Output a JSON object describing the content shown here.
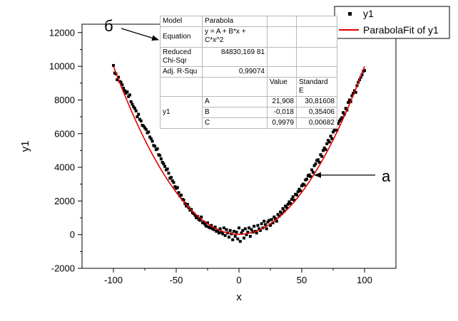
{
  "chart_data": {
    "type": "scatter",
    "xlabel": "x",
    "ylabel": "y1",
    "xlim": [
      -125,
      125
    ],
    "ylim": [
      -2000,
      12500
    ],
    "xticks": [
      -100,
      -50,
      0,
      50,
      100
    ],
    "yticks": [
      -2000,
      0,
      2000,
      4000,
      6000,
      8000,
      10000,
      12000
    ],
    "grid": false,
    "legend_position": "top-right",
    "series": [
      {
        "name": "y1",
        "kind": "scatter",
        "color": "#000000",
        "points": [
          [
            -100,
            10050
          ],
          [
            -99,
            9600
          ],
          [
            -98,
            9550
          ],
          [
            -97,
            9200
          ],
          [
            -96,
            9350
          ],
          [
            -95,
            9100
          ],
          [
            -94,
            9050
          ],
          [
            -93,
            8900
          ],
          [
            -92,
            8700
          ],
          [
            -91,
            8550
          ],
          [
            -90,
            8400
          ],
          [
            -89,
            8480
          ],
          [
            -88,
            8200
          ],
          [
            -87,
            8300
          ],
          [
            -86,
            7900
          ],
          [
            -85,
            7750
          ],
          [
            -84,
            7600
          ],
          [
            -83,
            7500
          ],
          [
            -82,
            7350
          ],
          [
            -81,
            7000
          ],
          [
            -80,
            7150
          ],
          [
            -79,
            6850
          ],
          [
            -78,
            6750
          ],
          [
            -77,
            6500
          ],
          [
            -76,
            6450
          ],
          [
            -75,
            6350
          ],
          [
            -74,
            6250
          ],
          [
            -73,
            6050
          ],
          [
            -72,
            6100
          ],
          [
            -71,
            5800
          ],
          [
            -70,
            5700
          ],
          [
            -69,
            5550
          ],
          [
            -68,
            5300
          ],
          [
            -67,
            5250
          ],
          [
            -66,
            5050
          ],
          [
            -65,
            5100
          ],
          [
            -64,
            4750
          ],
          [
            -63,
            4700
          ],
          [
            -62,
            4500
          ],
          [
            -61,
            4300
          ],
          [
            -60,
            4200
          ],
          [
            -59,
            4050
          ],
          [
            -58,
            3850
          ],
          [
            -57,
            3900
          ],
          [
            -56,
            3650
          ],
          [
            -55,
            3350
          ],
          [
            -54,
            3400
          ],
          [
            -53,
            3200
          ],
          [
            -52,
            3100
          ],
          [
            -51,
            2850
          ],
          [
            -50,
            2750
          ],
          [
            -49,
            2800
          ],
          [
            -48,
            2500
          ],
          [
            -47,
            2300
          ],
          [
            -46,
            2350
          ],
          [
            -45,
            2100
          ],
          [
            -44,
            2050
          ],
          [
            -43,
            1850
          ],
          [
            -42,
            1700
          ],
          [
            -41,
            1800
          ],
          [
            -40,
            1600
          ],
          [
            -39,
            1450
          ],
          [
            -38,
            1500
          ],
          [
            -37,
            1300
          ],
          [
            -36,
            1250
          ],
          [
            -35,
            1150
          ],
          [
            -34,
            1000
          ],
          [
            -33,
            1080
          ],
          [
            -32,
            900
          ],
          [
            -31,
            850
          ],
          [
            -30,
            1050
          ],
          [
            -29,
            700
          ],
          [
            -28,
            750
          ],
          [
            -27,
            600
          ],
          [
            -26,
            500
          ],
          [
            -25,
            700
          ],
          [
            -24,
            450
          ],
          [
            -23,
            400
          ],
          [
            -22,
            550
          ],
          [
            -21,
            350
          ],
          [
            -20,
            300
          ],
          [
            -19,
            450
          ],
          [
            -18,
            200
          ],
          [
            -17,
            250
          ],
          [
            -16,
            100
          ],
          [
            -15,
            350
          ],
          [
            -14,
            150
          ],
          [
            -13,
            50
          ],
          [
            -12,
            400
          ],
          [
            -11,
            -50
          ],
          [
            -10,
            300
          ],
          [
            -9,
            100
          ],
          [
            -8,
            -150
          ],
          [
            -7,
            250
          ],
          [
            -6,
            50
          ],
          [
            -5,
            -300
          ],
          [
            -4,
            200
          ],
          [
            -3,
            -100
          ],
          [
            -2,
            150
          ],
          [
            -1,
            -250
          ],
          [
            0,
            400
          ],
          [
            1,
            -400
          ],
          [
            2,
            100
          ],
          [
            3,
            250
          ],
          [
            4,
            -200
          ],
          [
            5,
            350
          ],
          [
            6,
            0
          ],
          [
            7,
            150
          ],
          [
            8,
            400
          ],
          [
            9,
            -100
          ],
          [
            10,
            300
          ],
          [
            11,
            150
          ],
          [
            12,
            500
          ],
          [
            13,
            200
          ],
          [
            14,
            100
          ],
          [
            15,
            550
          ],
          [
            16,
            350
          ],
          [
            17,
            250
          ],
          [
            18,
            650
          ],
          [
            19,
            400
          ],
          [
            20,
            800
          ],
          [
            21,
            600
          ],
          [
            22,
            350
          ],
          [
            23,
            750
          ],
          [
            24,
            850
          ],
          [
            25,
            550
          ],
          [
            26,
            900
          ],
          [
            27,
            700
          ],
          [
            28,
            1050
          ],
          [
            29,
            950
          ],
          [
            30,
            800
          ],
          [
            31,
            1200
          ],
          [
            32,
            1100
          ],
          [
            33,
            1350
          ],
          [
            34,
            1250
          ],
          [
            35,
            1550
          ],
          [
            36,
            1400
          ],
          [
            37,
            1700
          ],
          [
            38,
            1600
          ],
          [
            39,
            1800
          ],
          [
            40,
            1950
          ],
          [
            41,
            1850
          ],
          [
            42,
            2100
          ],
          [
            43,
            2250
          ],
          [
            44,
            2050
          ],
          [
            45,
            2400
          ],
          [
            46,
            2350
          ],
          [
            47,
            2550
          ],
          [
            48,
            2700
          ],
          [
            49,
            2600
          ],
          [
            50,
            2900
          ],
          [
            51,
            3000
          ],
          [
            52,
            2950
          ],
          [
            53,
            3250
          ],
          [
            54,
            3300
          ],
          [
            55,
            3500
          ],
          [
            56,
            3550
          ],
          [
            57,
            3450
          ],
          [
            58,
            3850
          ],
          [
            59,
            3700
          ],
          [
            60,
            4100
          ],
          [
            61,
            4200
          ],
          [
            62,
            4400
          ],
          [
            63,
            4450
          ],
          [
            64,
            4300
          ],
          [
            65,
            4750
          ],
          [
            66,
            4650
          ],
          [
            67,
            5000
          ],
          [
            68,
            5150
          ],
          [
            69,
            5050
          ],
          [
            70,
            5400
          ],
          [
            71,
            5600
          ],
          [
            72,
            5500
          ],
          [
            73,
            5850
          ],
          [
            74,
            5700
          ],
          [
            75,
            6100
          ],
          [
            76,
            6200
          ],
          [
            77,
            6350
          ],
          [
            78,
            6200
          ],
          [
            79,
            6600
          ],
          [
            80,
            6750
          ],
          [
            81,
            6850
          ],
          [
            82,
            6950
          ],
          [
            83,
            7250
          ],
          [
            84,
            7150
          ],
          [
            85,
            7500
          ],
          [
            86,
            7400
          ],
          [
            87,
            7850
          ],
          [
            88,
            8000
          ],
          [
            89,
            7900
          ],
          [
            90,
            8250
          ],
          [
            91,
            8400
          ],
          [
            92,
            8550
          ],
          [
            93,
            8450
          ],
          [
            94,
            8850
          ],
          [
            95,
            9050
          ],
          [
            96,
            9200
          ],
          [
            97,
            9350
          ],
          [
            98,
            9500
          ],
          [
            99,
            9700
          ],
          [
            100,
            9750
          ]
        ]
      },
      {
        "name": "ParabolaFit of y1",
        "kind": "line",
        "color": "#e00000",
        "equation": {
          "A": 21.908,
          "B": -0.018,
          "C": 0.9979
        }
      }
    ],
    "annotations": [
      {
        "label": "а",
        "arrow_to": [
          60,
          3600
        ]
      },
      {
        "label": "б",
        "arrow_to": "table Equation row"
      }
    ]
  },
  "fit_table": {
    "model_label": "Model",
    "model_value": "Parabola",
    "equation_label": "Equation",
    "equation_value": "y = A + B*x + C*x^2",
    "chisqr_label": "Reduced Chi-Sqr",
    "chisqr_value": "84830,169 81",
    "adjr_label": "Adj. R-Squ",
    "adjr_value": "0,99074",
    "col_value": "Value",
    "col_stderr": "Standard E",
    "group_label": "y1",
    "params": [
      {
        "name": "A",
        "value": "21,908",
        "stderr": "30,81608"
      },
      {
        "name": "B",
        "value": "-0,018",
        "stderr": "0,35406"
      },
      {
        "name": "C",
        "value": "0,9979",
        "stderr": "0,00682"
      }
    ]
  }
}
